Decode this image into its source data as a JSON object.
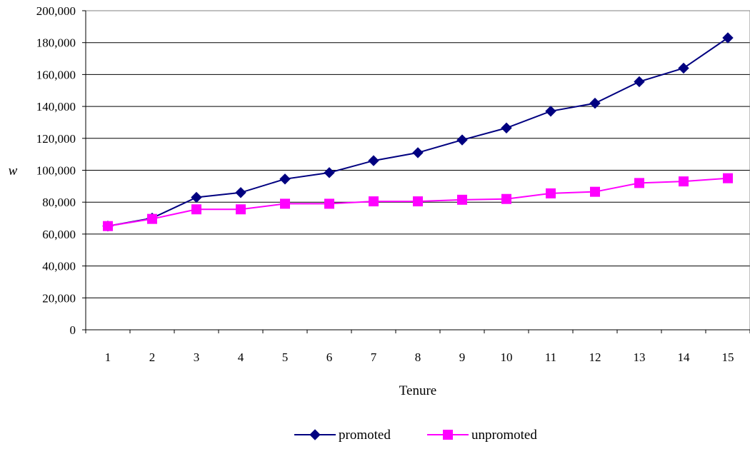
{
  "chart_data": {
    "type": "line",
    "title": "",
    "xlabel": "Tenure",
    "ylabel": "w",
    "categories": [
      "1",
      "2",
      "3",
      "4",
      "5",
      "6",
      "7",
      "8",
      "9",
      "10",
      "11",
      "12",
      "13",
      "14",
      "15"
    ],
    "ylim": [
      0,
      200000
    ],
    "yticks": [
      "0",
      "20,000",
      "40,000",
      "60,000",
      "80,000",
      "100,000",
      "120,000",
      "140,000",
      "160,000",
      "180,000",
      "200,000"
    ],
    "grid": true,
    "legend_position": "bottom",
    "series": [
      {
        "name": "promoted",
        "color": "#000080",
        "marker": "diamond",
        "values": [
          65000,
          70000,
          83000,
          86000,
          94500,
          98500,
          106000,
          111000,
          119000,
          126500,
          137000,
          142000,
          155500,
          164000,
          183000
        ]
      },
      {
        "name": "unpromoted",
        "color": "#FF00FF",
        "marker": "square",
        "values": [
          65000,
          69500,
          75500,
          75500,
          79000,
          79000,
          80500,
          80500,
          81500,
          82000,
          85500,
          86500,
          92000,
          93000,
          95000
        ]
      }
    ]
  }
}
